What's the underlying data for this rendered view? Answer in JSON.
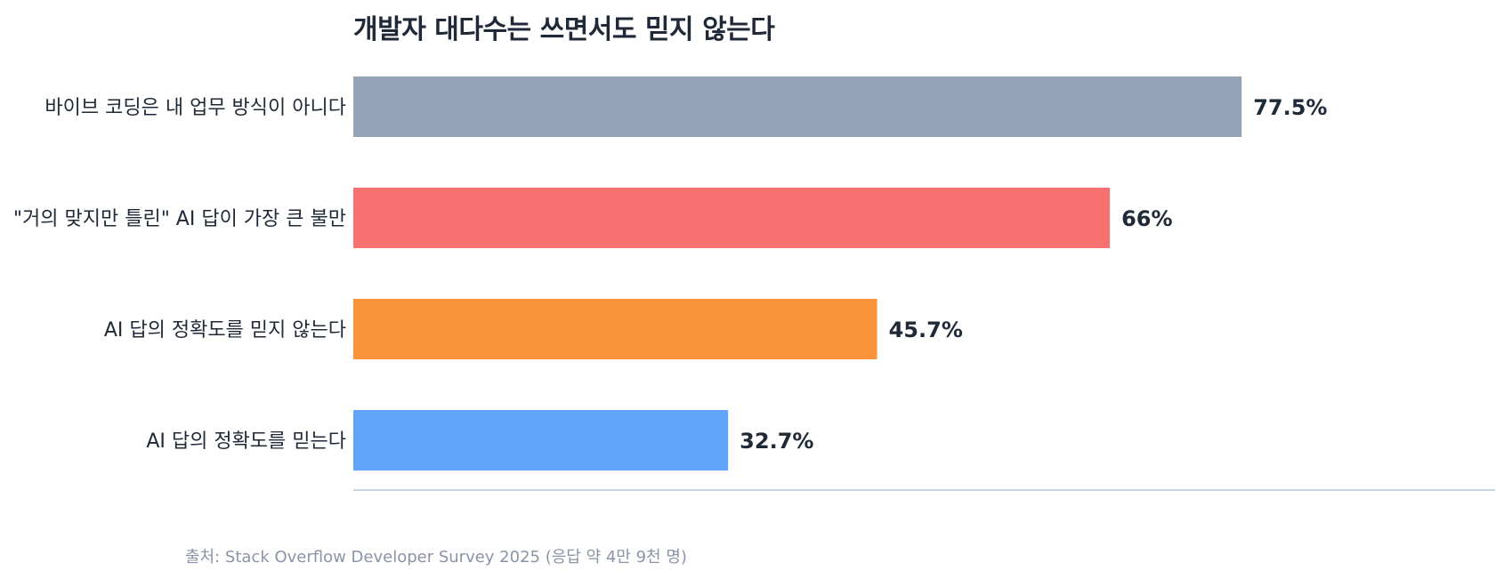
{
  "chart_data": {
    "type": "bar",
    "orientation": "horizontal",
    "title": "개발자 대다수는 쓰면서도 믿지 않는다",
    "xlabel": "",
    "ylabel": "",
    "categories": [
      "바이브 코딩은 내 업무 방식이 아니다",
      "\"거의 맞지만 틀린\" AI 답이 가장 큰 불만",
      "AI 답의 정확도를 믿지 않는다",
      "AI 답의 정확도를 믿는다"
    ],
    "values": [
      77.5,
      66,
      45.7,
      32.7
    ],
    "value_labels": [
      "77.5%",
      "66%",
      "45.7%",
      "32.7%"
    ],
    "colors": [
      "#94a3b8",
      "#f87171",
      "#fb923c",
      "#60a5fa"
    ],
    "xlim": [
      0,
      100
    ],
    "grid": false,
    "legend": "none",
    "axis_color": "#cbd5e1",
    "source": "출처: Stack Overflow Developer Survey 2025 (응답 약 4만 9천 명)"
  }
}
